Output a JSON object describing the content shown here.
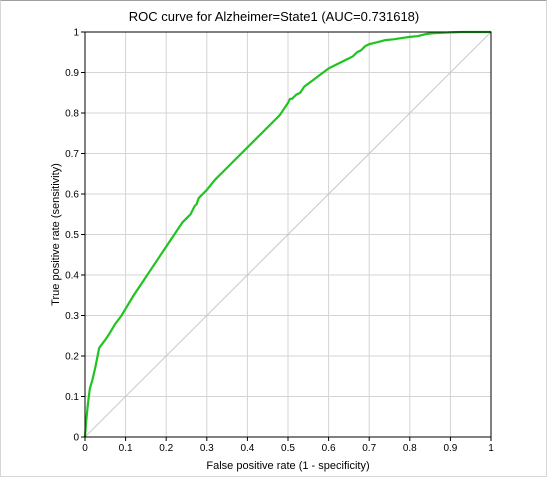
{
  "chart_data": {
    "type": "line",
    "title": "ROC curve for Alzheimer=State1 (AUC=0.731618)",
    "xlabel": "False positive rate (1 - specificity)",
    "ylabel": "True positive rate (sensitivity)",
    "xlim": [
      0,
      1
    ],
    "ylim": [
      0,
      1
    ],
    "xticks": [
      "0",
      "0.1",
      "0.2",
      "0.3",
      "0.4",
      "0.5",
      "0.6",
      "0.7",
      "0.8",
      "0.9",
      "1"
    ],
    "yticks": [
      "0",
      "0.1",
      "0.2",
      "0.3",
      "0.4",
      "0.5",
      "0.6",
      "0.7",
      "0.8",
      "0.9",
      "1"
    ],
    "grid": true,
    "legend": "none",
    "series": [
      {
        "color": "#1fc41f",
        "x": [
          0,
          0.003,
          0.007,
          0.012,
          0.018,
          0.025,
          0.035,
          0.05,
          0.06,
          0.075,
          0.09,
          0.105,
          0.12,
          0.14,
          0.16,
          0.18,
          0.2,
          0.22,
          0.24,
          0.25,
          0.26,
          0.27,
          0.275,
          0.28,
          0.29,
          0.3,
          0.32,
          0.34,
          0.36,
          0.38,
          0.4,
          0.42,
          0.44,
          0.46,
          0.48,
          0.49,
          0.5,
          0.505,
          0.51,
          0.52,
          0.53,
          0.54,
          0.56,
          0.58,
          0.6,
          0.62,
          0.64,
          0.66,
          0.67,
          0.68,
          0.69,
          0.7,
          0.72,
          0.74,
          0.76,
          0.78,
          0.8,
          0.82,
          0.84,
          0.86,
          0.88,
          0.9,
          0.93,
          0.96,
          1.0
        ],
        "y": [
          0,
          0.04,
          0.08,
          0.12,
          0.14,
          0.17,
          0.22,
          0.24,
          0.255,
          0.28,
          0.3,
          0.325,
          0.35,
          0.38,
          0.41,
          0.44,
          0.47,
          0.5,
          0.53,
          0.54,
          0.55,
          0.57,
          0.575,
          0.59,
          0.6,
          0.61,
          0.635,
          0.655,
          0.675,
          0.695,
          0.715,
          0.735,
          0.755,
          0.775,
          0.795,
          0.81,
          0.825,
          0.835,
          0.835,
          0.845,
          0.85,
          0.865,
          0.88,
          0.895,
          0.91,
          0.92,
          0.93,
          0.94,
          0.95,
          0.955,
          0.965,
          0.97,
          0.975,
          0.98,
          0.982,
          0.985,
          0.988,
          0.99,
          0.995,
          0.997,
          0.998,
          0.999,
          1.0,
          1.0,
          1.0
        ]
      },
      {
        "color": "#c8c8c8",
        "x": [
          0,
          1
        ],
        "y": [
          0,
          1
        ]
      }
    ]
  }
}
